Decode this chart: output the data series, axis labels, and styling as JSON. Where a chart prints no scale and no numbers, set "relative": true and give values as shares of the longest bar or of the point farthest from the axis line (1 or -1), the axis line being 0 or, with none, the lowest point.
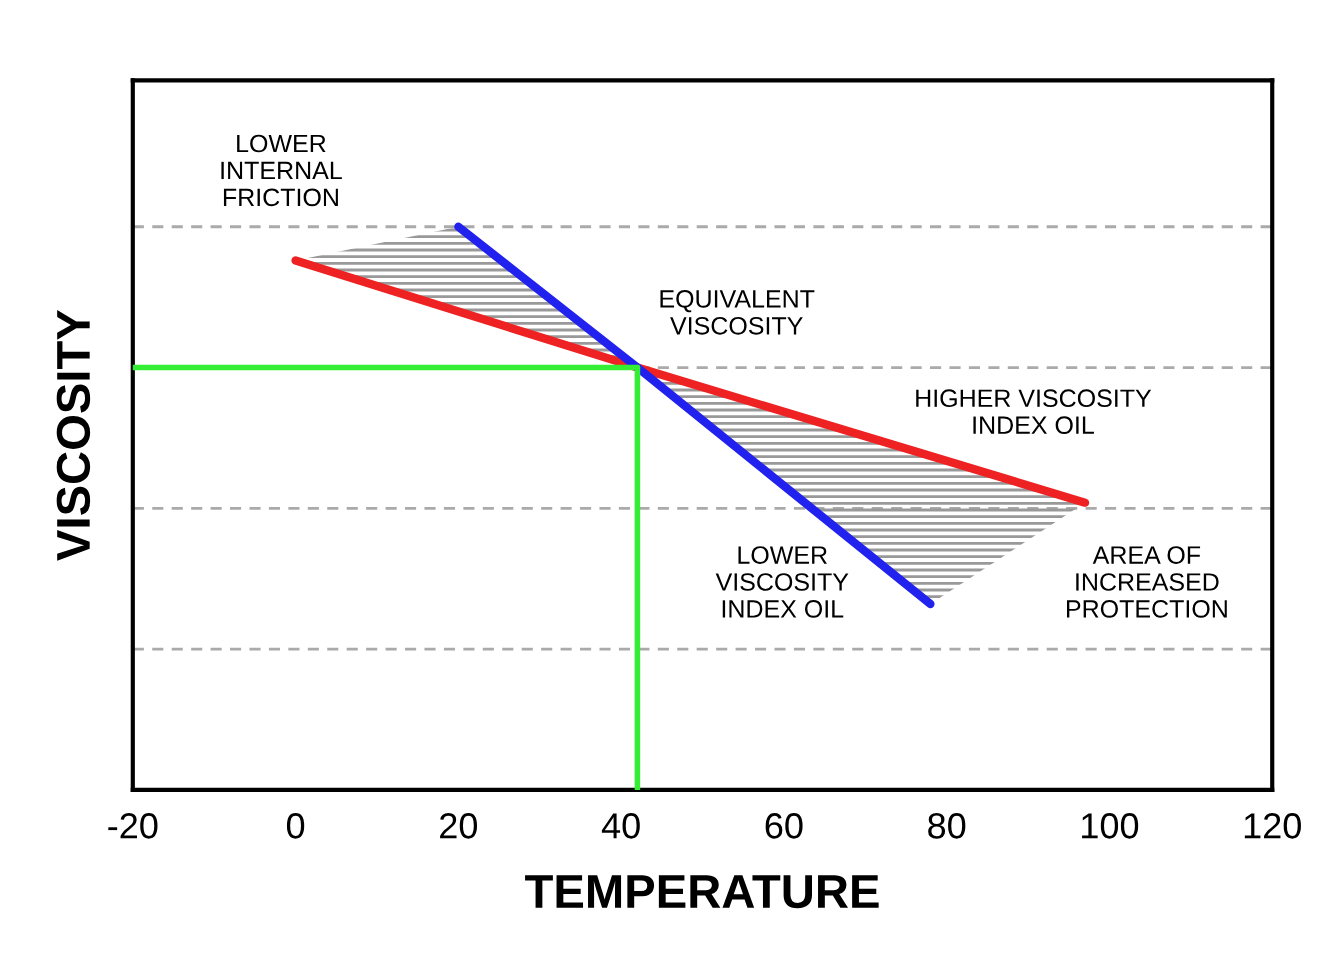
{
  "chart_data": {
    "type": "line",
    "xlabel": "TEMPERATURE",
    "ylabel": "VISCOSITY",
    "relative": true,
    "xlim": [
      -20,
      120
    ],
    "xticks": [
      -20,
      0,
      20,
      40,
      60,
      80,
      100,
      120
    ],
    "series": [
      {
        "color": "#ee2222",
        "x": [
          0,
          42,
          97
        ],
        "values": [
          0.94,
          0.75,
          0.51
        ]
      },
      {
        "color": "#2222ee",
        "x": [
          20,
          42,
          78
        ],
        "values": [
          1.0,
          0.75,
          0.33
        ]
      },
      {
        "color": "#33ee33",
        "x": [
          -20,
          42
        ],
        "values": [
          0.75,
          0.75
        ]
      },
      {
        "color": "#33ee33",
        "x": [
          42,
          42
        ],
        "values": [
          0,
          0.75
        ]
      }
    ],
    "ref_lines": [
      {
        "axis": "y",
        "value": 0.25,
        "color": "#aaaaaa",
        "line_style": "dashed"
      },
      {
        "axis": "y",
        "value": 0.5,
        "color": "#aaaaaa",
        "line_style": "dashed"
      },
      {
        "axis": "y",
        "value": 0.75,
        "color": "#aaaaaa",
        "line_style": "dashed"
      },
      {
        "axis": "y",
        "value": 1.0,
        "color": "#aaaaaa",
        "line_style": "dashed"
      }
    ],
    "annotations": [
      "LOWER\nINTERNAL\nFRICTION",
      "EQUIVALENT\nVISCOSITY",
      "HIGHER VISCOSITY\nINDEX OIL",
      "LOWER\nVISCOSITY\nINDEX OIL",
      "AREA OF\nINCREASED\nPROTECTION"
    ]
  }
}
